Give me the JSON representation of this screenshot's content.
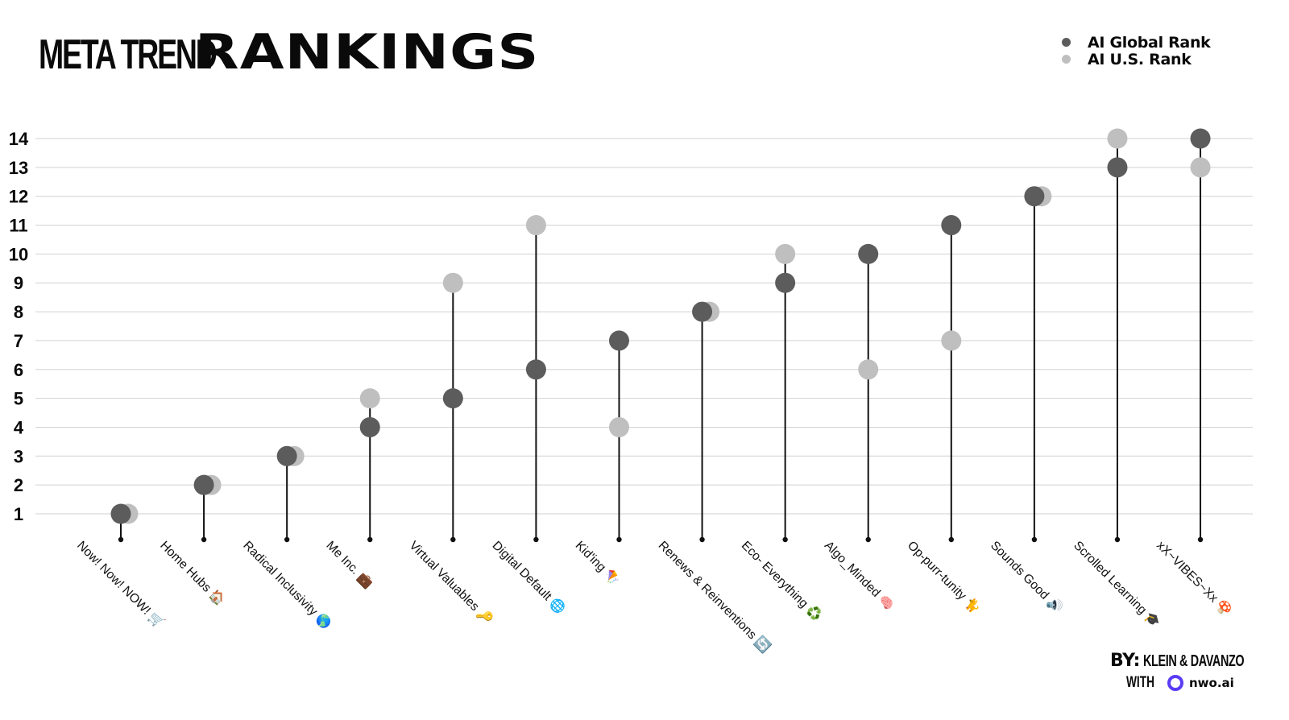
{
  "header": {
    "title_small": "META TREND",
    "title_large": "RANKINGS"
  },
  "legend": {
    "items": [
      {
        "label": "AI Global Rank",
        "color": "#5c5c5c"
      },
      {
        "label": "AI U.S. Rank",
        "color": "#bfbfbf"
      }
    ]
  },
  "credit": {
    "by_label": "BY:",
    "authors": "KLEIN & DAVANZO",
    "with_label": "WITH",
    "brand": "nwo.ai",
    "brand_color": "#5b3cf5"
  },
  "chart_data": {
    "type": "dot_plot",
    "title": "META TREND RANKINGS",
    "categories": [
      "Now! Now! NOW! 🛒",
      "Home Hubs 🏠",
      "Radical Inclusivity 🌎",
      "Me Inc. 💼",
      "Virtual Valuables 🔑",
      "Digital Default 🌐",
      "Kid'ing 🪁",
      "Renews & Reinventions 🔄",
      "Eco- Everything ♻️",
      "Algo_Minded 🧠",
      "Op-purr-tunity 🐈",
      "Sounds Good 🔊",
      "Scrolled Learning 🎓",
      "xX~VIBES~Xx 🍄"
    ],
    "series": [
      {
        "name": "AI Global Rank",
        "color": "#5c5c5c",
        "values": [
          1,
          2,
          3,
          4,
          5,
          6,
          7,
          8,
          9,
          10,
          11,
          12,
          13,
          14
        ]
      },
      {
        "name": "AI U.S. Rank",
        "color": "#bfbfbf",
        "values": [
          1,
          2,
          3,
          5,
          9,
          11,
          4,
          8,
          10,
          6,
          7,
          12,
          14,
          13
        ]
      }
    ],
    "yticks": [
      1,
      2,
      3,
      4,
      5,
      6,
      7,
      8,
      9,
      10,
      11,
      12,
      13,
      14
    ],
    "ylim": [
      1,
      14
    ],
    "grid": true,
    "legend_position": "top-right"
  }
}
